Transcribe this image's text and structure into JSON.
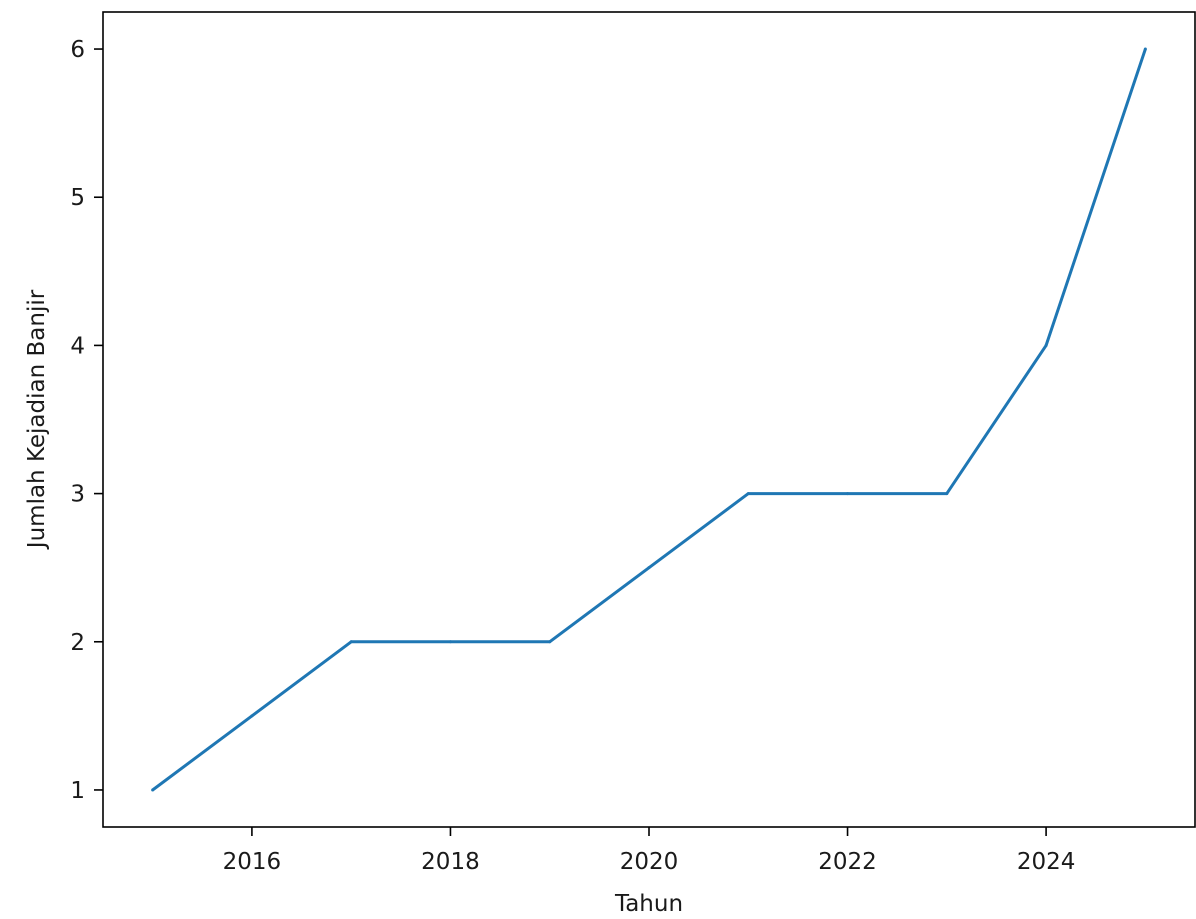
{
  "chart_data": {
    "type": "line",
    "title": "",
    "xlabel": "Tahun",
    "ylabel": "Jumlah Kejadian Banjir",
    "xlim": [
      2014.5,
      2025.5
    ],
    "ylim": [
      0.75,
      6.25
    ],
    "x_ticks": [
      2016,
      2018,
      2020,
      2022,
      2024
    ],
    "y_ticks": [
      1,
      2,
      3,
      4,
      5,
      6
    ],
    "grid": false,
    "legend": "none",
    "series": [
      {
        "color": "#1f77b4",
        "x": [
          2015,
          2016,
          2017,
          2018,
          2019,
          2020,
          2021,
          2022,
          2023,
          2024,
          2025
        ],
        "y": [
          1,
          1.5,
          2,
          2,
          2,
          2.5,
          3,
          3,
          3,
          4,
          6
        ]
      }
    ]
  }
}
